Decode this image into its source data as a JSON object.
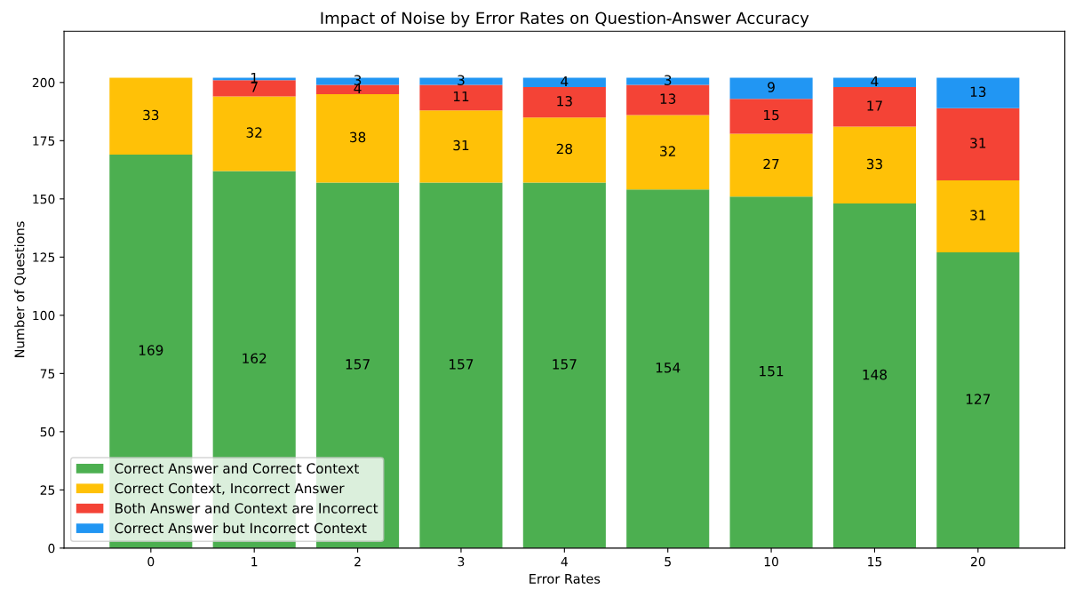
{
  "chart_data": {
    "type": "bar",
    "title": "Impact of Noise by Error Rates on Question-Answer Accuracy",
    "xlabel": "Error Rates",
    "ylabel": "Number of Questions",
    "categories": [
      "0",
      "1",
      "2",
      "3",
      "4",
      "5",
      "10",
      "15",
      "20"
    ],
    "stacked": true,
    "data_labels": true,
    "legend": "bottom left",
    "ylim": [
      0,
      222
    ],
    "yticks": [
      0,
      25,
      50,
      75,
      100,
      125,
      150,
      175,
      200
    ],
    "series": [
      {
        "name": "Correct Answer and Correct Context",
        "color": "#4caf50",
        "values": [
          169,
          162,
          157,
          157,
          157,
          154,
          151,
          148,
          127
        ]
      },
      {
        "name": "Correct Context, Incorrect Answer",
        "color": "#ffc107",
        "values": [
          33,
          32,
          38,
          31,
          28,
          32,
          27,
          33,
          31
        ]
      },
      {
        "name": "Both Answer and Context are Incorrect",
        "color": "#f44336",
        "values": [
          null,
          7,
          4,
          11,
          13,
          13,
          15,
          17,
          31
        ]
      },
      {
        "name": "Correct Answer but Incorrect Context",
        "color": "#2196f3",
        "values": [
          null,
          1,
          3,
          3,
          4,
          3,
          9,
          4,
          13
        ]
      }
    ]
  }
}
